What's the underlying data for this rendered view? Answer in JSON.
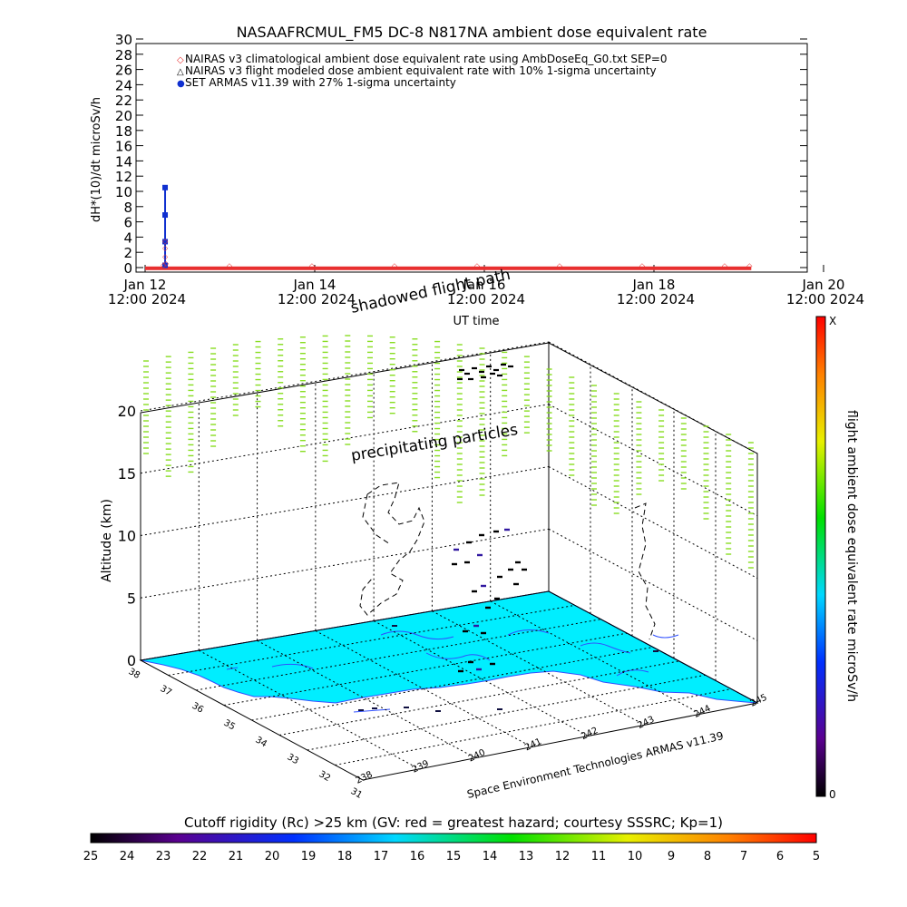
{
  "chart_data": [
    {
      "type": "line",
      "title": "NASAAFRCMUL_FM5 DC-8   N817NA ambient dose equivalent rate",
      "ylabel": "dH*(10)/dt microSv/h",
      "xlabel": "UT time",
      "ylim": [
        0,
        30
      ],
      "y_ticks": [
        "0",
        "2",
        "4",
        "6",
        "8",
        "10",
        "12",
        "14",
        "16",
        "18",
        "20",
        "22",
        "24",
        "26",
        "28",
        "30"
      ],
      "x_ticks": [
        {
          "day": "Jan 12",
          "time": "12:00  2024"
        },
        {
          "day": "Jan 14",
          "time": "12:00  2024"
        },
        {
          "day": "Jan 16",
          "time": "12:00  2024"
        },
        {
          "day": "Jan 18",
          "time": "12:00  2024"
        },
        {
          "day": "Jan 20",
          "time": "12:00  2024"
        }
      ],
      "legend": [
        {
          "symbol": "◇",
          "color": "#e83030",
          "label": "NAIRAS v3 climatological ambient dose equivalent rate using AmbDoseEq_G0.txt SEP=0"
        },
        {
          "symbol": "△",
          "color": "#000000",
          "label": "NAIRAS v3 flight modeled dose ambient equivalent rate with 10% 1-sigma uncertainty"
        },
        {
          "symbol": "●",
          "color": "#1030d0",
          "label": "SET ARMAS v11.39 with 27% 1-sigma uncertainty"
        }
      ],
      "legend_position": "top-left",
      "series": [
        {
          "name": "SET ARMAS v11.39 with 27% 1-sigma uncertainty",
          "color": "#1030d0",
          "points": [
            [
              0.22,
              0.3
            ],
            [
              0.22,
              3.4
            ],
            [
              0.22,
              6.9
            ],
            [
              0.22,
              10.5
            ]
          ]
        },
        {
          "name": "NAIRAS v3 climatological ambient dose equivalent rate using AmbDoseEq_G0.txt SEP=0",
          "color": "#e83030",
          "points": [
            [
              0.2,
              0.4
            ],
            [
              0.22,
              1.5
            ],
            [
              0.22,
              2.6
            ],
            [
              0.22,
              3.5
            ],
            [
              0.23,
              0.6
            ],
            [
              1.0,
              0.3
            ],
            [
              2.0,
              0.3
            ],
            [
              3.0,
              0.3
            ],
            [
              4.0,
              0.3
            ],
            [
              5.0,
              0.3
            ],
            [
              6.0,
              0.3
            ],
            [
              7.0,
              0.3
            ],
            [
              7.3,
              0.3
            ]
          ]
        }
      ],
      "xlim_days_from_jan12_12UT": [
        0,
        8
      ]
    },
    {
      "type": "other",
      "description_3d": true,
      "z_label": "Altitude (km)",
      "z_ticks": [
        "0",
        "5",
        "10",
        "15",
        "20"
      ],
      "lat_ticks": [
        "38",
        "37",
        "36",
        "35",
        "34",
        "33",
        "32",
        "31"
      ],
      "lon_ticks": [
        "238",
        "239",
        "240",
        "241",
        "242",
        "243",
        "244",
        "245"
      ],
      "annotations": [
        "shadowed flight path",
        "precipitating particles"
      ],
      "credit": "Space Environment Technologies ARMAS v11.39",
      "right_colorbar": {
        "label": "flight ambient dose equivalent rate microSv/h",
        "max_label": "X",
        "min_label": "0"
      },
      "bottom_colorbar": {
        "label": "Cutoff rigidity (Rc) >25 km (GV: red = greatest hazard; courtesy SSSRC; Kp=1)",
        "ticks": [
          "25",
          "24",
          "23",
          "22",
          "21",
          "20",
          "19",
          "18",
          "17",
          "16",
          "15",
          "14",
          "13",
          "12",
          "11",
          "10",
          "9",
          "8",
          "7",
          "6",
          "5"
        ]
      },
      "surface_color": "#00eeff",
      "particle_color": "#88dd22"
    }
  ]
}
